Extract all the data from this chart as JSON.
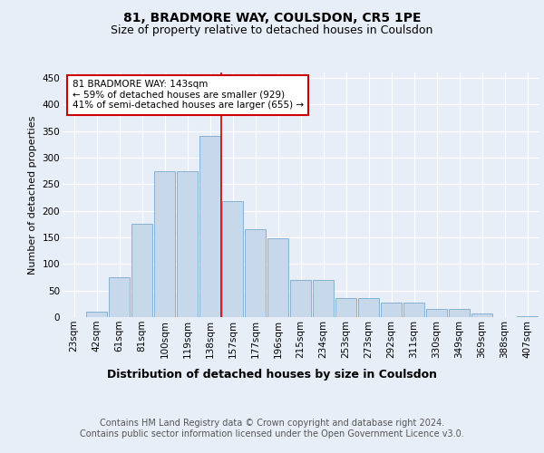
{
  "title": "81, BRADMORE WAY, COULSDON, CR5 1PE",
  "subtitle": "Size of property relative to detached houses in Coulsdon",
  "xlabel": "Distribution of detached houses by size in Coulsdon",
  "ylabel": "Number of detached properties",
  "bar_labels": [
    "23sqm",
    "42sqm",
    "61sqm",
    "81sqm",
    "100sqm",
    "119sqm",
    "138sqm",
    "157sqm",
    "177sqm",
    "196sqm",
    "215sqm",
    "234sqm",
    "253sqm",
    "273sqm",
    "292sqm",
    "311sqm",
    "330sqm",
    "349sqm",
    "369sqm",
    "388sqm",
    "407sqm"
  ],
  "bar_values": [
    0,
    10,
    75,
    175,
    275,
    275,
    340,
    218,
    165,
    148,
    70,
    70,
    35,
    35,
    28,
    28,
    15,
    15,
    7,
    0,
    2
  ],
  "bar_color": "#c8d8eb",
  "bar_edge_color": "#7aa8cc",
  "vline_x_index": 6,
  "vline_color": "#cc0000",
  "annotation_text": "81 BRADMORE WAY: 143sqm\n← 59% of detached houses are smaller (929)\n41% of semi-detached houses are larger (655) →",
  "annotation_box_facecolor": "#ffffff",
  "annotation_box_edgecolor": "#cc0000",
  "ylim": [
    0,
    460
  ],
  "yticks": [
    0,
    50,
    100,
    150,
    200,
    250,
    300,
    350,
    400,
    450
  ],
  "bg_color": "#e8eef8",
  "plot_bg_color": "#e8eef8",
  "grid_color": "#ffffff",
  "footer": "Contains HM Land Registry data © Crown copyright and database right 2024.\nContains public sector information licensed under the Open Government Licence v3.0.",
  "title_fontsize": 10,
  "subtitle_fontsize": 9,
  "xlabel_fontsize": 9,
  "ylabel_fontsize": 8,
  "tick_fontsize": 7.5,
  "footer_fontsize": 7
}
